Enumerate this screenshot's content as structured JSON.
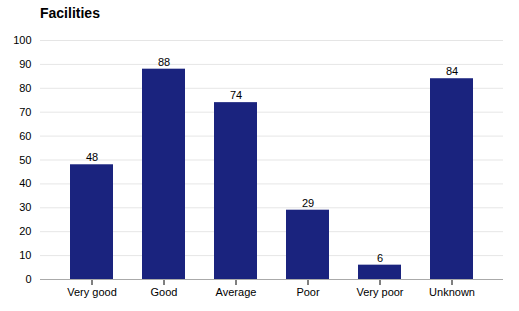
{
  "chart_data": {
    "type": "bar",
    "title": "Facilities",
    "categories": [
      "Very good",
      "Good",
      "Average",
      "Poor",
      "Very poor",
      "Unknown"
    ],
    "values": [
      48,
      88,
      74,
      29,
      6,
      84
    ],
    "color": "#1a237e",
    "ylim": [
      0,
      100
    ],
    "yticks": [
      0,
      10,
      20,
      30,
      40,
      50,
      60,
      70,
      80,
      90,
      100
    ],
    "grid": true,
    "data_labels": true
  }
}
